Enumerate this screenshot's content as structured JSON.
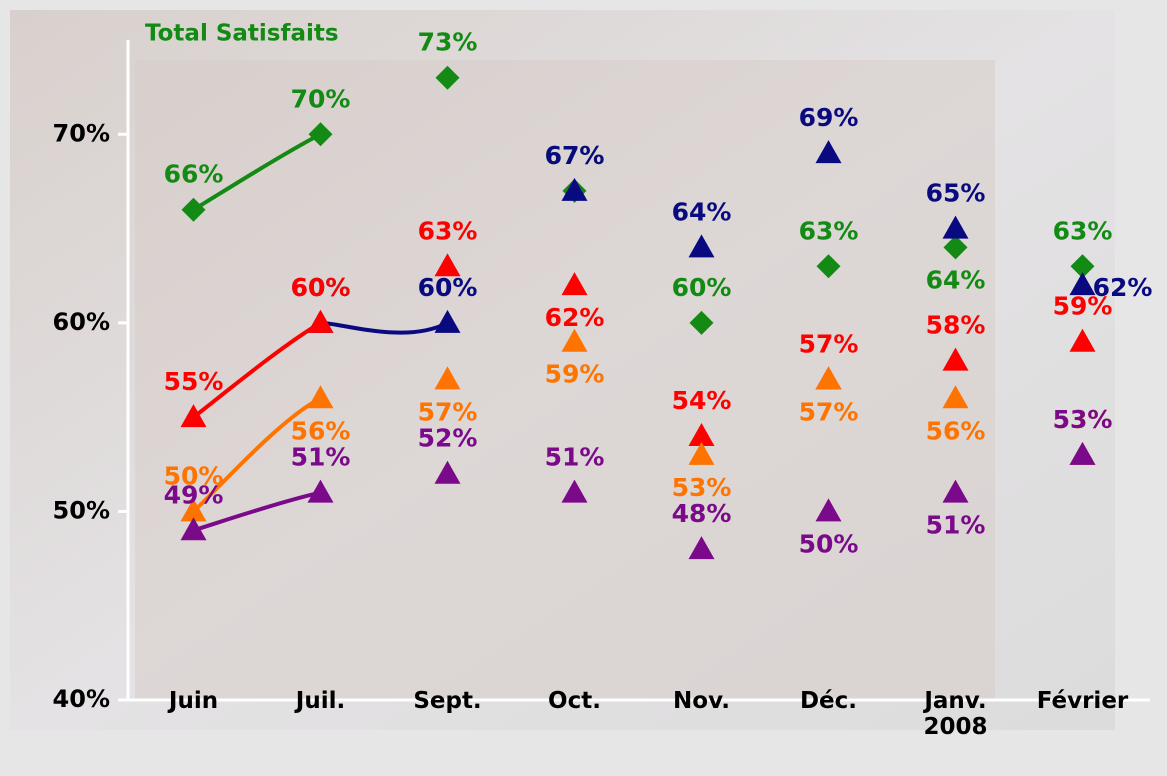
{
  "chart_data": {
    "type": "line",
    "categories": [
      "Juin",
      "Juil.",
      "Sept.",
      "Oct.",
      "Nov.",
      "Déc.",
      "Janv.\n2008",
      "Février"
    ],
    "ylim": [
      40,
      75
    ],
    "yticks": [
      {
        "value": 40,
        "label": "40%"
      },
      {
        "value": 50,
        "label": "50%"
      },
      {
        "value": 60,
        "label": "60%"
      },
      {
        "value": 70,
        "label": "70%"
      }
    ],
    "series": [
      {
        "name": "Total Satisfaits",
        "color": "#138a13",
        "marker": "diamond",
        "values": [
          66,
          70,
          73,
          67,
          60,
          63,
          64,
          63
        ],
        "value_labels": [
          "66%",
          "70%",
          "73%",
          "67%",
          "60%",
          "63%",
          "64%",
          "63%"
        ]
      },
      {
        "color": "#0a0a80",
        "marker": "triangle",
        "values": [
          null,
          60,
          60,
          67,
          64,
          69,
          65,
          62
        ],
        "value_labels": [
          null,
          "60%",
          "60%",
          "67%",
          "64%",
          "69%",
          "65%",
          "62%"
        ]
      },
      {
        "color": "#ff0000",
        "marker": "triangle",
        "values": [
          55,
          60,
          63,
          62,
          54,
          57,
          58,
          59
        ],
        "value_labels": [
          "55%",
          "60%",
          "63%",
          "62%",
          "54%",
          "57%",
          "58%",
          "59%"
        ]
      },
      {
        "color": "#ff7400",
        "marker": "triangle",
        "values": [
          50,
          56,
          57,
          59,
          53,
          57,
          56,
          53
        ],
        "value_labels": [
          "50%",
          "56%",
          "57%",
          "59%",
          "53%",
          "57%",
          "56%",
          "53%"
        ]
      },
      {
        "color": "#7a0a8a",
        "marker": "triangle",
        "values": [
          49,
          51,
          52,
          51,
          48,
          50,
          51,
          53
        ],
        "value_labels": [
          "49%",
          "51%",
          "52%",
          "51%",
          "48%",
          "50%",
          "51%",
          "53%"
        ]
      }
    ]
  }
}
